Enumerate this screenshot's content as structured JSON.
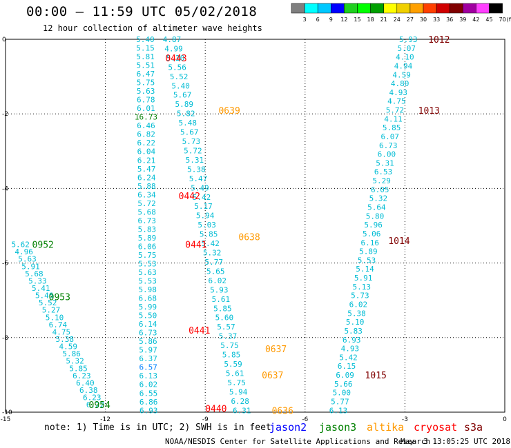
{
  "header": {
    "title": "00:00 – 11:59 UTC 05/02/2018",
    "subtitle": "12 hour collection of altimeter wave heights"
  },
  "colorbar": {
    "unit": "(ft)",
    "ticks": [
      "3",
      "6",
      "9",
      "12",
      "15",
      "18",
      "21",
      "24",
      "27",
      "30",
      "33",
      "36",
      "39",
      "42",
      "45",
      "70"
    ],
    "colors": [
      "#7f7f7f",
      "#00ffff",
      "#00c8ff",
      "#0000ff",
      "#20d020",
      "#00ff00",
      "#00a000",
      "#ffff00",
      "#f0d000",
      "#ffa000",
      "#ff4000",
      "#d00000",
      "#800000",
      "#a000a0",
      "#ff40ff",
      "#000000"
    ]
  },
  "footer": {
    "note": "note: 1) Time is in UTC; 2) SWH is in feet",
    "credit": "NOAA/NESDIS Center for Satellite Applications and Research",
    "timestamp": "May  3 13:05:25 UTC 2018"
  },
  "legend": [
    {
      "name": "jason2",
      "color": "#0000ff"
    },
    {
      "name": "jason3",
      "color": "#008000"
    },
    {
      "name": "altika",
      "color": "#ff9900"
    },
    {
      "name": "cryosat",
      "color": "#ff0000"
    },
    {
      "name": "s3a",
      "color": "#800000"
    }
  ],
  "chart_data": {
    "type": "scatter",
    "xlim": [
      -15,
      0
    ],
    "ylim": [
      -10,
      0
    ],
    "x_ticks": [
      "-15",
      "-12",
      "-9",
      "-6",
      "-3",
      "0"
    ],
    "y_ticks": [
      "0",
      "-2",
      "-4",
      "-6",
      "-8",
      "-10"
    ],
    "grid": true,
    "passes": [
      {
        "label": "0443",
        "mission": "cryosat",
        "x": -10.2,
        "y": -0.5
      },
      {
        "label": "0639",
        "mission": "altika",
        "x": -8.6,
        "y": -1.9
      },
      {
        "label": "0442",
        "mission": "cryosat",
        "x": -9.8,
        "y": -4.2
      },
      {
        "label": "0441",
        "mission": "cryosat",
        "x": -9.6,
        "y": -5.5
      },
      {
        "label": "0638",
        "mission": "altika",
        "x": -8.0,
        "y": -5.3
      },
      {
        "label": "0441",
        "mission": "cryosat",
        "x": -9.5,
        "y": -7.8
      },
      {
        "label": "0637",
        "mission": "altika",
        "x": -7.2,
        "y": -8.3
      },
      {
        "label": "0637",
        "mission": "altika",
        "x": -7.3,
        "y": -9.0
      },
      {
        "label": "0440",
        "mission": "cryosat",
        "x": -9.0,
        "y": -9.9
      },
      {
        "label": "0636",
        "mission": "altika",
        "x": -7.0,
        "y": -9.95
      },
      {
        "label": "0952",
        "mission": "jason3",
        "x": -14.2,
        "y": -5.5
      },
      {
        "label": "0953",
        "mission": "jason3",
        "x": -13.7,
        "y": -6.9
      },
      {
        "label": "0954",
        "mission": "jason3",
        "x": -12.5,
        "y": -9.8
      },
      {
        "label": "1012",
        "mission": "s3a",
        "x": -2.3,
        "y": 0.0
      },
      {
        "label": "1013",
        "mission": "s3a",
        "x": -2.6,
        "y": -1.9
      },
      {
        "label": "1014",
        "mission": "s3a",
        "x": -3.5,
        "y": -5.4
      },
      {
        "label": "1015",
        "mission": "s3a",
        "x": -4.2,
        "y": -9.0
      }
    ],
    "tracks": [
      {
        "name": "track-a",
        "x0": -10.8,
        "y0": 0.0,
        "x1": -10.7,
        "y1": -9.95,
        "values": [
          "5.40",
          "5.15",
          "5.81",
          "5.51",
          "6.47",
          "5.75",
          "5.63",
          "6.78",
          "6.01",
          "16.73",
          "6.46",
          "6.82",
          "6.22",
          "6.04",
          "6.21",
          "5.47",
          "6.24",
          "5.88",
          "6.34",
          "5.72",
          "5.68",
          "6.73",
          "5.83",
          "5.89",
          "6.06",
          "5.75",
          "5.53",
          "5.63",
          "5.53",
          "5.98",
          "6.68",
          "5.99",
          "5.50",
          "6.14",
          "6.73",
          "5.86",
          "5.97",
          "6.37",
          "6.57",
          "6.13",
          "6.02",
          "6.55",
          "6.86",
          "6.93"
        ],
        "colors": [
          "c",
          "c",
          "c",
          "c",
          "c",
          "c",
          "c",
          "c",
          "c",
          "g",
          "c",
          "c",
          "c",
          "c",
          "c",
          "c",
          "c",
          "c",
          "c",
          "c",
          "c",
          "c",
          "c",
          "c",
          "c",
          "c",
          "c",
          "c",
          "c",
          "c",
          "c",
          "c",
          "c",
          "c",
          "c",
          "c",
          "c",
          "c",
          "b",
          "c",
          "c",
          "c",
          "c",
          "c"
        ]
      },
      {
        "name": "track-b",
        "x0": -10.0,
        "y0": 0.0,
        "x1": -7.9,
        "y1": -9.95,
        "values": [
          "4.87",
          "4.99",
          "5.20",
          "5.56",
          "5.52",
          "5.40",
          "5.67",
          "5.89",
          "5.82",
          "5.48",
          "5.67",
          "5.73",
          "5.72",
          "5.31",
          "5.38",
          "5.47",
          "5.49",
          "5.42",
          "5.17",
          "5.94",
          "5.03",
          "5.85",
          "5.42",
          "5.32",
          "5.77",
          "5.65",
          "6.02",
          "5.93",
          "5.61",
          "5.85",
          "5.60",
          "5.57",
          "5.37",
          "5.75",
          "5.85",
          "5.59",
          "5.61",
          "5.75",
          "5.94",
          "6.28",
          "6.31"
        ],
        "colors": [
          "c",
          "c",
          "c",
          "c",
          "c",
          "c",
          "c",
          "c",
          "c",
          "c",
          "c",
          "c",
          "c",
          "c",
          "c",
          "c",
          "c",
          "c",
          "c",
          "c",
          "c",
          "c",
          "c",
          "c",
          "c",
          "c",
          "c",
          "c",
          "c",
          "c",
          "c",
          "c",
          "c",
          "c",
          "c",
          "c",
          "c",
          "c",
          "c",
          "c",
          "c"
        ]
      },
      {
        "name": "track-c",
        "x0": -14.55,
        "y0": -5.5,
        "x1": -12.3,
        "y1": -9.8,
        "values": [
          "5.62",
          "4.96",
          "5.63",
          "5.91",
          "5.68",
          "5.33",
          "5.41",
          "5.46",
          "5.52",
          "5.27",
          "5.10",
          "6.74",
          "4.75",
          "5.38",
          "4.59",
          "5.86",
          "5.32",
          "5.85",
          "6.23",
          "6.40",
          "6.38",
          "6.23",
          "6.22"
        ],
        "colors": [
          "c",
          "c",
          "c",
          "c",
          "c",
          "c",
          "c",
          "c",
          "c",
          "c",
          "c",
          "c",
          "c",
          "c",
          "c",
          "c",
          "c",
          "c",
          "c",
          "c",
          "c",
          "c",
          "c"
        ]
      },
      {
        "name": "track-d",
        "x0": -2.9,
        "y0": 0.0,
        "x1": -5.0,
        "y1": -9.95,
        "values": [
          "5.93",
          "5.07",
          "4.10",
          "4.94",
          "4.59",
          "4.80",
          "4.93",
          "4.75",
          "5.72",
          "4.11",
          "5.85",
          "6.07",
          "6.73",
          "6.00",
          "5.31",
          "6.53",
          "5.29",
          "6.05",
          "5.32",
          "5.64",
          "5.80",
          "5.96",
          "5.06",
          "6.16",
          "5.89",
          "5.53",
          "5.14",
          "5.91",
          "5.13",
          "5.73",
          "6.02",
          "5.38",
          "5.10",
          "5.83",
          "6.93",
          "4.93",
          "5.42",
          "6.15",
          "6.09",
          "5.66",
          "5.00",
          "5.77",
          "6.13"
        ],
        "colors": [
          "c",
          "c",
          "c",
          "c",
          "c",
          "c",
          "c",
          "c",
          "c",
          "c",
          "c",
          "c",
          "c",
          "c",
          "c",
          "c",
          "c",
          "c",
          "c",
          "c",
          "c",
          "c",
          "c",
          "c",
          "c",
          "c",
          "c",
          "c",
          "c",
          "c",
          "c",
          "c",
          "c",
          "c",
          "c",
          "c",
          "c",
          "c",
          "c",
          "c",
          "c",
          "c",
          "c"
        ]
      }
    ]
  }
}
